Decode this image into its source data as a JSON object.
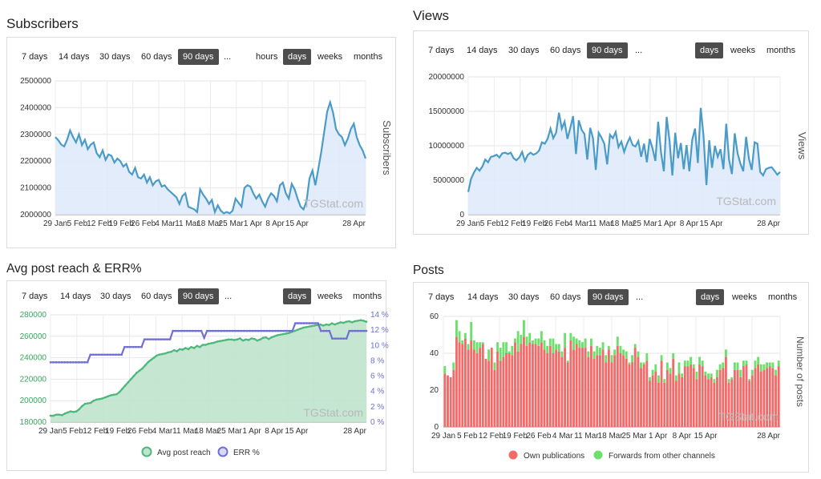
{
  "titles": {
    "subscribers": "Subscribers",
    "views": "Views",
    "reach": "Avg post reach & ERR%",
    "posts": "Posts"
  },
  "range_buttons": [
    "7 days",
    "14 days",
    "30 days",
    "60 days",
    "90 days",
    "..."
  ],
  "range_active": "90 days",
  "unit_buttons": [
    "hours",
    "days",
    "weeks",
    "months"
  ],
  "unit_buttons_short": [
    "days",
    "weeks",
    "months"
  ],
  "unit_active": "days",
  "watermark": "TGStat.com",
  "colors": {
    "line_blue": "#4a9bc7",
    "fill_blue": "#dde9fa",
    "reach_green": "#4cb87a",
    "reach_fill": "#bfe3cc",
    "err_purple": "#6f6fd6",
    "own_red": "#f26b6b",
    "forward_green": "#6be06b",
    "axis_green": "#3aa55f",
    "axis_purple": "#6f6fd6"
  },
  "legend": {
    "reach": [
      {
        "label": "Avg post reach",
        "icon": "green-circle-icon"
      },
      {
        "label": "ERR %",
        "icon": "purple-circle-icon"
      }
    ],
    "posts": [
      {
        "label": "Own publications",
        "icon": "red-circle-icon"
      },
      {
        "label": "Forwards from other channels",
        "icon": "green-circle-icon"
      }
    ]
  },
  "chart_data": [
    {
      "id": "subscribers",
      "type": "area",
      "ylabel": "Subscribers",
      "ylim": [
        2000000,
        2500000
      ],
      "yticks": [
        "2000000",
        "2100000",
        "2200000",
        "2300000",
        "2400000",
        "2500000"
      ],
      "xticks": [
        "29 Jan",
        "5 Feb",
        "12 Feb",
        "19 Feb",
        "26 Feb",
        "4 Mar",
        "11 Mar",
        "18 Mar",
        "25 Mar",
        "1 Apr",
        "8 Apr",
        "15 Apr",
        "28 Apr"
      ],
      "values": [
        2290000,
        2278000,
        2262000,
        2255000,
        2280000,
        2315000,
        2290000,
        2270000,
        2300000,
        2260000,
        2280000,
        2245000,
        2262000,
        2270000,
        2230000,
        2215000,
        2240000,
        2205000,
        2225000,
        2220000,
        2195000,
        2210000,
        2200000,
        2180000,
        2190000,
        2160000,
        2150000,
        2175000,
        2140000,
        2135000,
        2150000,
        2120000,
        2140000,
        2110000,
        2125000,
        2130000,
        2105000,
        2110000,
        2095000,
        2085000,
        2075000,
        2065000,
        2040000,
        2070000,
        2080000,
        2030000,
        2025000,
        2020000,
        2010000,
        2095000,
        2075000,
        2060000,
        2040000,
        2055000,
        2010000,
        2035000,
        2015000,
        2005000,
        2010000,
        2005000,
        2015000,
        2060000,
        2045000,
        2030000,
        2100000,
        2110000,
        2105000,
        2080000,
        2060000,
        2075000,
        2050000,
        2030000,
        2060000,
        2080000,
        2070000,
        2050000,
        2110000,
        2120000,
        2080000,
        2060000,
        2115000,
        2095000,
        2060000,
        2030000,
        2020000,
        2050000,
        2135000,
        2165000,
        2110000,
        2170000,
        2235000,
        2310000,
        2385000,
        2420000,
        2380000,
        2320000,
        2300000,
        2290000,
        2260000,
        2285000,
        2320000,
        2340000,
        2290000,
        2260000,
        2240000,
        2210000
      ],
      "y_domain": [
        2000000,
        2500000
      ]
    },
    {
      "id": "views",
      "type": "area",
      "ylabel": "Views",
      "ylim": [
        0,
        20000000
      ],
      "yticks": [
        "0",
        "5000000",
        "10000000",
        "15000000",
        "20000000"
      ],
      "xticks": [
        "29 Jan",
        "5 Feb",
        "12 Feb",
        "19 Feb",
        "26 Feb",
        "4 Mar",
        "11 Mar",
        "18 Mar",
        "25 Mar",
        "1 Apr",
        "8 Apr",
        "15 Apr",
        "28 Apr"
      ],
      "values": [
        3300000,
        5200000,
        6100000,
        6800000,
        6400000,
        7000000,
        8000000,
        7600000,
        8400000,
        8500000,
        8700000,
        8300000,
        8900000,
        9000000,
        8800000,
        9000000,
        8200000,
        7900000,
        8300000,
        9100000,
        7800000,
        8700000,
        9000000,
        8700000,
        8900000,
        9300000,
        10500000,
        10300000,
        11000000,
        12500000,
        11100000,
        11900000,
        14800000,
        12500000,
        13500000,
        11000000,
        12600000,
        14300000,
        8800000,
        13700000,
        12300000,
        11700000,
        8000000,
        12600000,
        11100000,
        6500000,
        11900000,
        11200000,
        10300000,
        7300000,
        11600000,
        11100000,
        12000000,
        9800000,
        10600000,
        9100000,
        10300000,
        11200000,
        10100000,
        9900000,
        10700000,
        8400000,
        10300000,
        7600000,
        11000000,
        9600000,
        7800000,
        13500000,
        9000000,
        6300000,
        14200000,
        10700000,
        5700000,
        11900000,
        8200000,
        10400000,
        6600000,
        10100000,
        6300000,
        10900000,
        12500000,
        7500000,
        15500000,
        11400000,
        4300000,
        10800000,
        6800000,
        10000000,
        8400000,
        9500000,
        6600000,
        13200000,
        8000000,
        5900000,
        11800000,
        8900000,
        7400000,
        6300000,
        11300000,
        8100000,
        6500000,
        10500000,
        10300000,
        6200000,
        5700000,
        6600000,
        6800000,
        6900000,
        6400000,
        5800000,
        6200000
      ],
      "y_domain": [
        0,
        20000000
      ]
    },
    {
      "id": "reach",
      "type": "line",
      "ylim_left": [
        180000,
        280000
      ],
      "ylim_right": [
        0,
        14
      ],
      "yticks_left": [
        "180000",
        "200000",
        "220000",
        "240000",
        "260000",
        "280000"
      ],
      "yticks_right": [
        "0 %",
        "2 %",
        "4 %",
        "6 %",
        "8 %",
        "10 %",
        "12 %",
        "14 %"
      ],
      "xticks": [
        "29 Jan",
        "5 Feb",
        "12 Feb",
        "19 Feb",
        "26 Feb",
        "4 Mar",
        "11 Mar",
        "18 Mar",
        "25 Mar",
        "1 Apr",
        "8 Apr",
        "15 Apr",
        "28 Apr"
      ],
      "series": [
        {
          "name": "Avg post reach",
          "axis": "left",
          "values": [
            186000,
            186000,
            187000,
            187000,
            186500,
            188000,
            189000,
            190000,
            189500,
            190000,
            192000,
            195000,
            197000,
            197500,
            198000,
            200000,
            201000,
            201500,
            202000,
            203000,
            204000,
            205000,
            205500,
            206000,
            208000,
            211000,
            214000,
            217000,
            220000,
            223000,
            226000,
            228000,
            230000,
            233000,
            236000,
            238000,
            240000,
            242000,
            243000,
            243500,
            244000,
            245000,
            245500,
            247000,
            246000,
            248000,
            247500,
            249000,
            248000,
            250000,
            249000,
            251000,
            250000,
            252000,
            252000,
            253000,
            253500,
            254000,
            255000,
            255500,
            256000,
            256500,
            257000,
            257000,
            256500,
            257000,
            258000,
            256000,
            257000,
            256500,
            258000,
            257500,
            256000,
            257000,
            258500,
            259000,
            257500,
            259000,
            260000,
            261000,
            261500,
            262000,
            262500,
            263000,
            264000,
            265000,
            266000,
            267000,
            268000,
            268500,
            269000,
            269500,
            270000,
            270500,
            271000,
            270000,
            271000,
            270500,
            272000,
            271000,
            272000,
            273000,
            272500,
            273500,
            274000,
            273000,
            274000,
            274500,
            275000,
            274500,
            273500
          ]
        },
        {
          "name": "ERR %",
          "axis": "right",
          "values": [
            7.8,
            7.8,
            7.8,
            7.8,
            7.8,
            7.8,
            7.8,
            7.8,
            7.8,
            7.8,
            7.8,
            7.8,
            7.8,
            7.8,
            8.8,
            8.8,
            8.8,
            8.8,
            8.8,
            8.8,
            8.8,
            8.8,
            8.8,
            8.8,
            8.8,
            8.8,
            9.8,
            9.8,
            9.8,
            9.8,
            9.8,
            9.8,
            9.8,
            10.8,
            10.8,
            10.8,
            10.8,
            10.8,
            10.8,
            10.8,
            10.8,
            10.8,
            10.8,
            11.9,
            11.9,
            11.9,
            11.9,
            11.9,
            11.9,
            11.9,
            11.9,
            11.9,
            11.9,
            11.9,
            11.0,
            11.9,
            11.9,
            11.9,
            11.9,
            11.9,
            11.9,
            11.9,
            11.9,
            11.9,
            11.9,
            11.9,
            11.9,
            11.9,
            11.9,
            11.9,
            11.9,
            11.9,
            11.9,
            11.9,
            11.9,
            11.9,
            11.9,
            11.9,
            11.9,
            11.9,
            11.9,
            11.9,
            11.9,
            11.9,
            11.9,
            11.9,
            12.9,
            12.9,
            12.9,
            12.9,
            12.9,
            12.9,
            12.9,
            12.9,
            12.9,
            11.9,
            11.9,
            11.9,
            11.9,
            10.9,
            10.9,
            10.9,
            10.9,
            10.9,
            10.9,
            11.9,
            11.9,
            11.9,
            11.9,
            11.9,
            11.9,
            11.9
          ]
        }
      ]
    },
    {
      "id": "posts",
      "type": "bar",
      "stacked": true,
      "ylabel": "Number of posts",
      "ylim": [
        0,
        60
      ],
      "yticks": [
        "0",
        "20",
        "40",
        "60"
      ],
      "xticks": [
        "29 Jan",
        "5 Feb",
        "12 Feb",
        "19 Feb",
        "26 Feb",
        "4 Mar",
        "11 Mar",
        "18 Mar",
        "25 Mar",
        "1 Apr",
        "8 Apr",
        "15 Apr",
        "28 Apr"
      ],
      "series": [
        {
          "name": "Own publications",
          "values": [
            29,
            28,
            27,
            31,
            49,
            46,
            45,
            48,
            42,
            47,
            42,
            40,
            43,
            45,
            37,
            36,
            43,
            31,
            41,
            36,
            38,
            40,
            40,
            39,
            46,
            41,
            45,
            49,
            44,
            46,
            45,
            45,
            44,
            46,
            42,
            40,
            44,
            40,
            42,
            41,
            38,
            43,
            35,
            47,
            42,
            45,
            43,
            43,
            43,
            38,
            44,
            37,
            39,
            39,
            42,
            35,
            42,
            35,
            39,
            44,
            40,
            39,
            37,
            34,
            35,
            43,
            38,
            32,
            34,
            36,
            25,
            28,
            30,
            24,
            36,
            24,
            31,
            29,
            37,
            25,
            29,
            27,
            33,
            33,
            34,
            32,
            26,
            34,
            33,
            28,
            26,
            27,
            24,
            27,
            31,
            32,
            38,
            24,
            26,
            31,
            31,
            27,
            33,
            34,
            25,
            28,
            32,
            34,
            30,
            31,
            32,
            33,
            32,
            28,
            33
          ]
        },
        {
          "name": "Forwards from other channels",
          "values": [
            4,
            0,
            0,
            4,
            9,
            6,
            2,
            3,
            3,
            10,
            5,
            6,
            3,
            1,
            0,
            6,
            0,
            4,
            5,
            7,
            8,
            6,
            1,
            5,
            2,
            11,
            5,
            9,
            5,
            5,
            2,
            3,
            4,
            6,
            5,
            4,
            4,
            8,
            3,
            4,
            3,
            8,
            1,
            4,
            7,
            3,
            4,
            3,
            5,
            3,
            4,
            4,
            5,
            4,
            4,
            4,
            2,
            4,
            3,
            5,
            4,
            3,
            4,
            1,
            4,
            2,
            3,
            3,
            1,
            4,
            2,
            3,
            4,
            4,
            3,
            2,
            4,
            3,
            3,
            3,
            6,
            2,
            3,
            3,
            4,
            2,
            4,
            4,
            3,
            2,
            3,
            2,
            2,
            4,
            3,
            3,
            4,
            2,
            1,
            4,
            4,
            4,
            3,
            2,
            1,
            3,
            4,
            4,
            4,
            3,
            3,
            2,
            3,
            3,
            3
          ]
        }
      ]
    }
  ]
}
